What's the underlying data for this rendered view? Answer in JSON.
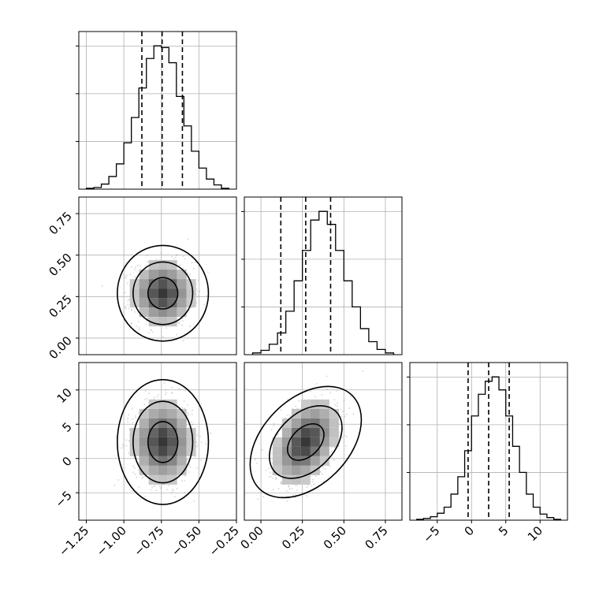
{
  "chart_data": {
    "type": "corner",
    "parameters": [
      {
        "id": "p0",
        "range": [
          -1.3,
          -0.25
        ],
        "ticks": [
          -1.25,
          -1.0,
          -0.75,
          -0.5,
          -0.25
        ],
        "tick_labels": [
          "−1.25",
          "−1.00",
          "−0.75",
          "−0.50",
          "−0.25"
        ]
      },
      {
        "id": "p1",
        "range": [
          -0.1,
          0.85
        ],
        "ticks": [
          0.0,
          0.25,
          0.5,
          0.75
        ],
        "tick_labels": [
          "0.00",
          "0.25",
          "0.50",
          "0.75"
        ]
      },
      {
        "id": "p2",
        "range": [
          -9.0,
          14.0
        ],
        "ticks": [
          -5,
          0,
          5,
          10
        ],
        "tick_labels": [
          "−5",
          "0",
          "5",
          "10"
        ]
      }
    ],
    "grid": true,
    "marginals": [
      {
        "param": "p0",
        "quantiles": [
          -0.88,
          -0.745,
          -0.61
        ],
        "bin_edges": [
          -1.25,
          -1.2,
          -1.15,
          -1.1,
          -1.05,
          -1.0,
          -0.95,
          -0.9,
          -0.85,
          -0.8,
          -0.75,
          -0.7,
          -0.65,
          -0.6,
          -0.55,
          -0.5,
          -0.45,
          -0.4,
          -0.35,
          -0.3
        ],
        "counts": [
          1,
          2,
          6,
          15,
          30,
          55,
          85,
          120,
          155,
          170,
          168,
          150,
          110,
          75,
          45,
          25,
          12,
          5,
          1
        ]
      },
      {
        "param": "p1",
        "quantiles": [
          0.12,
          0.27,
          0.42
        ],
        "bin_edges": [
          -0.05,
          0.0,
          0.05,
          0.1,
          0.15,
          0.2,
          0.25,
          0.3,
          0.35,
          0.4,
          0.45,
          0.5,
          0.55,
          0.6,
          0.65,
          0.7,
          0.75,
          0.8
        ],
        "counts": [
          2,
          5,
          12,
          25,
          50,
          85,
          120,
          155,
          165,
          150,
          120,
          85,
          55,
          30,
          15,
          6,
          2
        ]
      },
      {
        "param": "p2",
        "quantiles": [
          -0.5,
          2.5,
          5.5
        ],
        "bin_edges": [
          -8,
          -7,
          -6,
          -5,
          -4,
          -3,
          -2,
          -1,
          0,
          1,
          2,
          3,
          4,
          5,
          6,
          7,
          8,
          9,
          10,
          11,
          12,
          13
        ],
        "counts": [
          1,
          2,
          4,
          8,
          15,
          30,
          50,
          80,
          120,
          145,
          160,
          165,
          150,
          120,
          85,
          55,
          30,
          15,
          7,
          3,
          1
        ]
      }
    ],
    "joint": [
      {
        "x": "p0",
        "y": "p1",
        "center": [
          -0.74,
          0.27
        ],
        "sigma": [
          0.1,
          0.095
        ],
        "rho": 0.0
      },
      {
        "x": "p0",
        "y": "p2",
        "center": [
          -0.74,
          2.4
        ],
        "sigma": [
          0.1,
          3.0
        ],
        "rho": 0.0
      },
      {
        "x": "p1",
        "y": "p2",
        "center": [
          0.27,
          2.4
        ],
        "sigma": [
          0.095,
          3.0
        ],
        "rho": 0.4
      }
    ],
    "contour_levels": [
      0.39,
      0.86,
      0.99
    ],
    "quantile_style": "dashed"
  }
}
